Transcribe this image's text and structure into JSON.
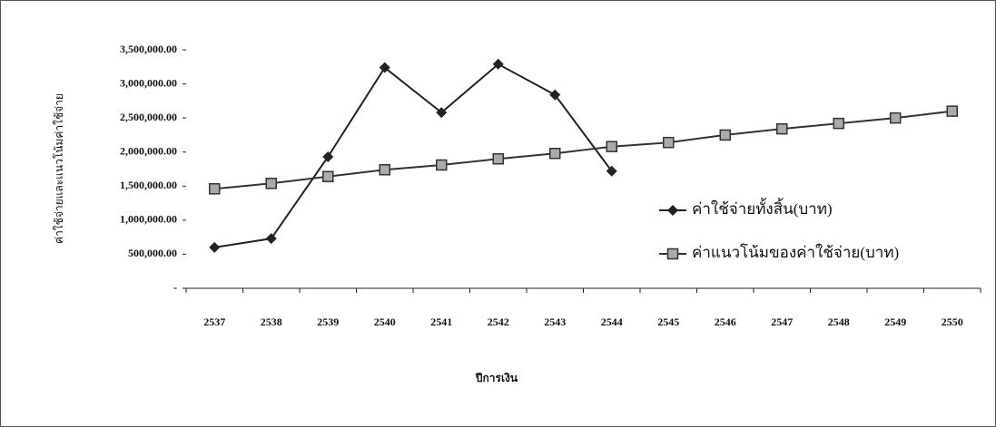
{
  "chart_data": {
    "type": "line",
    "x_label": "ปีการเงิน",
    "y_label": "ค่าใช้จ่ายและแนวโน้มค่าใช้จ่าย",
    "categories": [
      "2537",
      "2538",
      "2539",
      "2540",
      "2541",
      "2542",
      "2543",
      "2544",
      "2545",
      "2546",
      "2547",
      "2548",
      "2549",
      "2550"
    ],
    "series": [
      {
        "name": "ค่าใช้จ่ายทั้งสิ้น(บาท)",
        "color": "#222222",
        "marker": "diamond",
        "values": [
          600000,
          730000,
          1930000,
          3240000,
          2580000,
          3290000,
          2840000,
          1720000,
          null,
          null,
          null,
          null,
          null,
          null
        ]
      },
      {
        "name": "ค่าแนวโน้มของค่าใช้จ่าย(บาท)",
        "color": "#333333",
        "marker": "square",
        "values": [
          1460000,
          1540000,
          1640000,
          1740000,
          1810000,
          1900000,
          1980000,
          2080000,
          2140000,
          2250000,
          2340000,
          2420000,
          2500000,
          2600000
        ]
      }
    ],
    "ylim": [
      0,
      3500000
    ],
    "yticks": [
      {
        "value": 0,
        "label": "-"
      },
      {
        "value": 500000,
        "label": "500,000.00"
      },
      {
        "value": 1000000,
        "label": "1,000,000.00"
      },
      {
        "value": 1500000,
        "label": "1,500,000.00"
      },
      {
        "value": 2000000,
        "label": "2,000,000.00"
      },
      {
        "value": 2500000,
        "label": "2,500,000.00"
      },
      {
        "value": 3000000,
        "label": "3,000,000.00"
      },
      {
        "value": 3500000,
        "label": "3,500,000.00"
      }
    ],
    "grid": false,
    "legend": "right"
  }
}
